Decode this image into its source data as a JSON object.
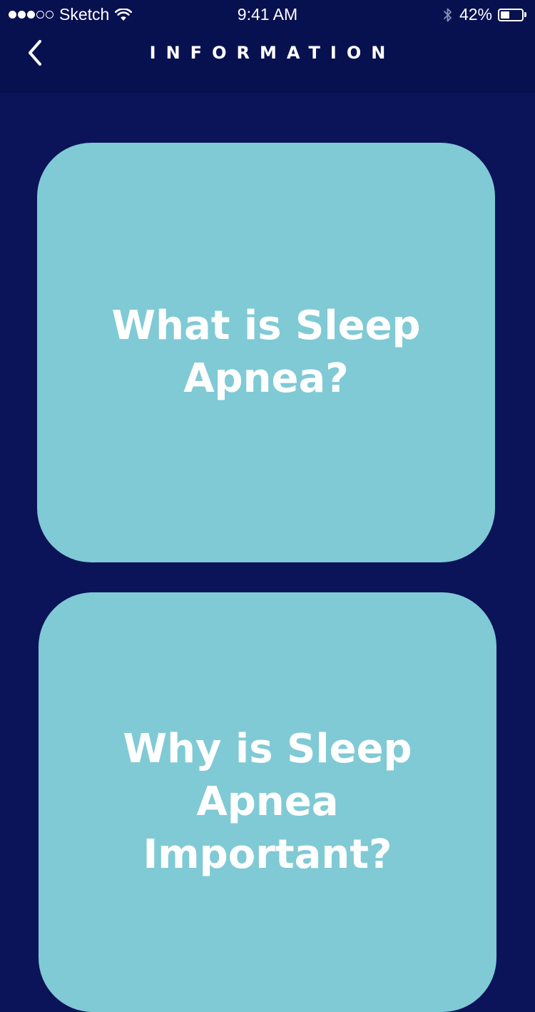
{
  "status_bar": {
    "signal_filled": 3,
    "signal_total": 5,
    "carrier": "Sketch",
    "time": "9:41 AM",
    "battery_percent": "42%",
    "battery_level": 0.42,
    "icons": [
      "wifi-icon",
      "bluetooth-icon",
      "battery-icon"
    ]
  },
  "header": {
    "title": "INFORMATION",
    "back_icon": "chevron-left-icon"
  },
  "cards": [
    {
      "title": "What is Sleep Apnea?"
    },
    {
      "title": "Why is Sleep Apnea Important?"
    }
  ],
  "colors": {
    "background": "#0b1359",
    "header": "#081150",
    "card": "#7fcad5",
    "text": "#ffffff"
  }
}
